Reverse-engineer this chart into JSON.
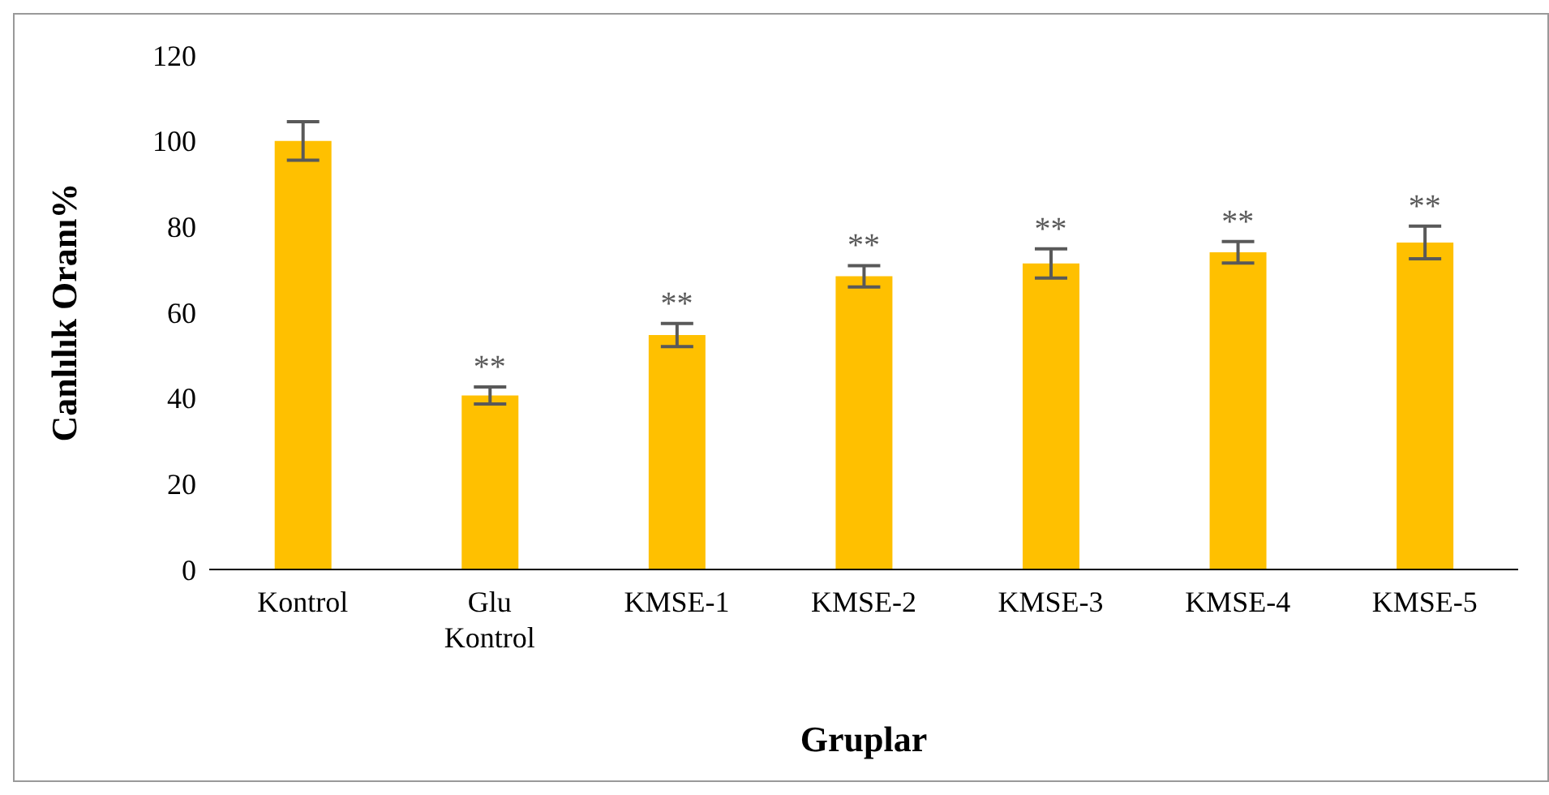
{
  "chart_data": {
    "type": "bar",
    "xlabel": "Gruplar",
    "ylabel": "Canlılık Oranı%",
    "categories": [
      "Kontrol",
      "Glu Kontrol",
      "KMSE-1",
      "KMSE-2",
      "KMSE-3",
      "KMSE-4",
      "KMSE-5"
    ],
    "values": [
      100,
      40.6,
      54.7,
      68.4,
      71.4,
      74,
      76.3
    ],
    "errors": [
      4.5,
      2,
      2.7,
      2.5,
      3.4,
      2.5,
      3.8
    ],
    "color": "#ffc000",
    "ylim": [
      0,
      120
    ],
    "yticks": [
      0,
      20,
      40,
      60,
      80,
      100,
      120
    ],
    "annotations": [
      {
        "text": "**",
        "x": "Glu Kontrol",
        "y": 42.6
      },
      {
        "text": "**",
        "x": "KMSE-1",
        "y": 57.4
      },
      {
        "text": "**",
        "x": "KMSE-2",
        "y": 70.9
      },
      {
        "text": "**",
        "x": "KMSE-3",
        "y": 74.8
      },
      {
        "text": "**",
        "x": "KMSE-4",
        "y": 76.5
      },
      {
        "text": "**",
        "x": "KMSE-5",
        "y": 80.1
      }
    ]
  }
}
